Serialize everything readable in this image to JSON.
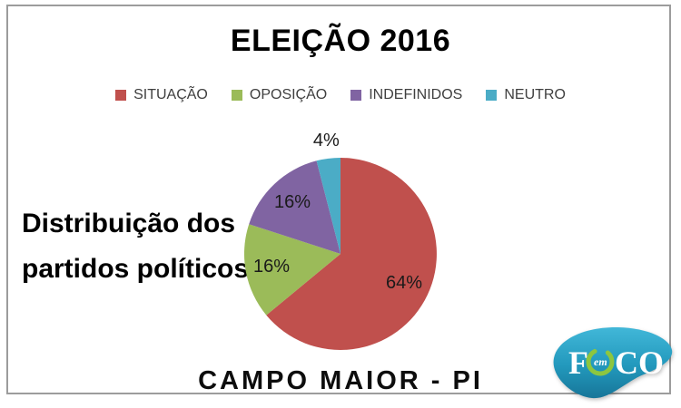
{
  "title": "ELEIÇÃO 2016",
  "side_label": {
    "line1": "Distribuição dos",
    "line2": "partidos políticos"
  },
  "footer": "CAMPO MAIOR - PI",
  "logo": {
    "part1": "F",
    "part2": "em",
    "part3": "CO",
    "blob_color_top": "#41b7d8",
    "blob_color_bottom": "#177699",
    "swirl_color": "#8dc63f",
    "text_color": "#ffffff"
  },
  "chart_data": {
    "type": "pie",
    "title": "ELEIÇÃO 2016",
    "categories": [
      "SITUAÇÃO",
      "OPOSIÇÃO",
      "INDEFINIDOS",
      "NEUTRO"
    ],
    "values": [
      64,
      16,
      16,
      4
    ],
    "labels": [
      "64%",
      "16%",
      "16%",
      "4%"
    ],
    "colors": [
      "#C0504D",
      "#9BBB59",
      "#8064A2",
      "#4BACC6"
    ],
    "legend_position": "top",
    "start_angle_deg": 0,
    "direction": "clockwise",
    "label_position": "inside, outside when slice < 10%"
  }
}
